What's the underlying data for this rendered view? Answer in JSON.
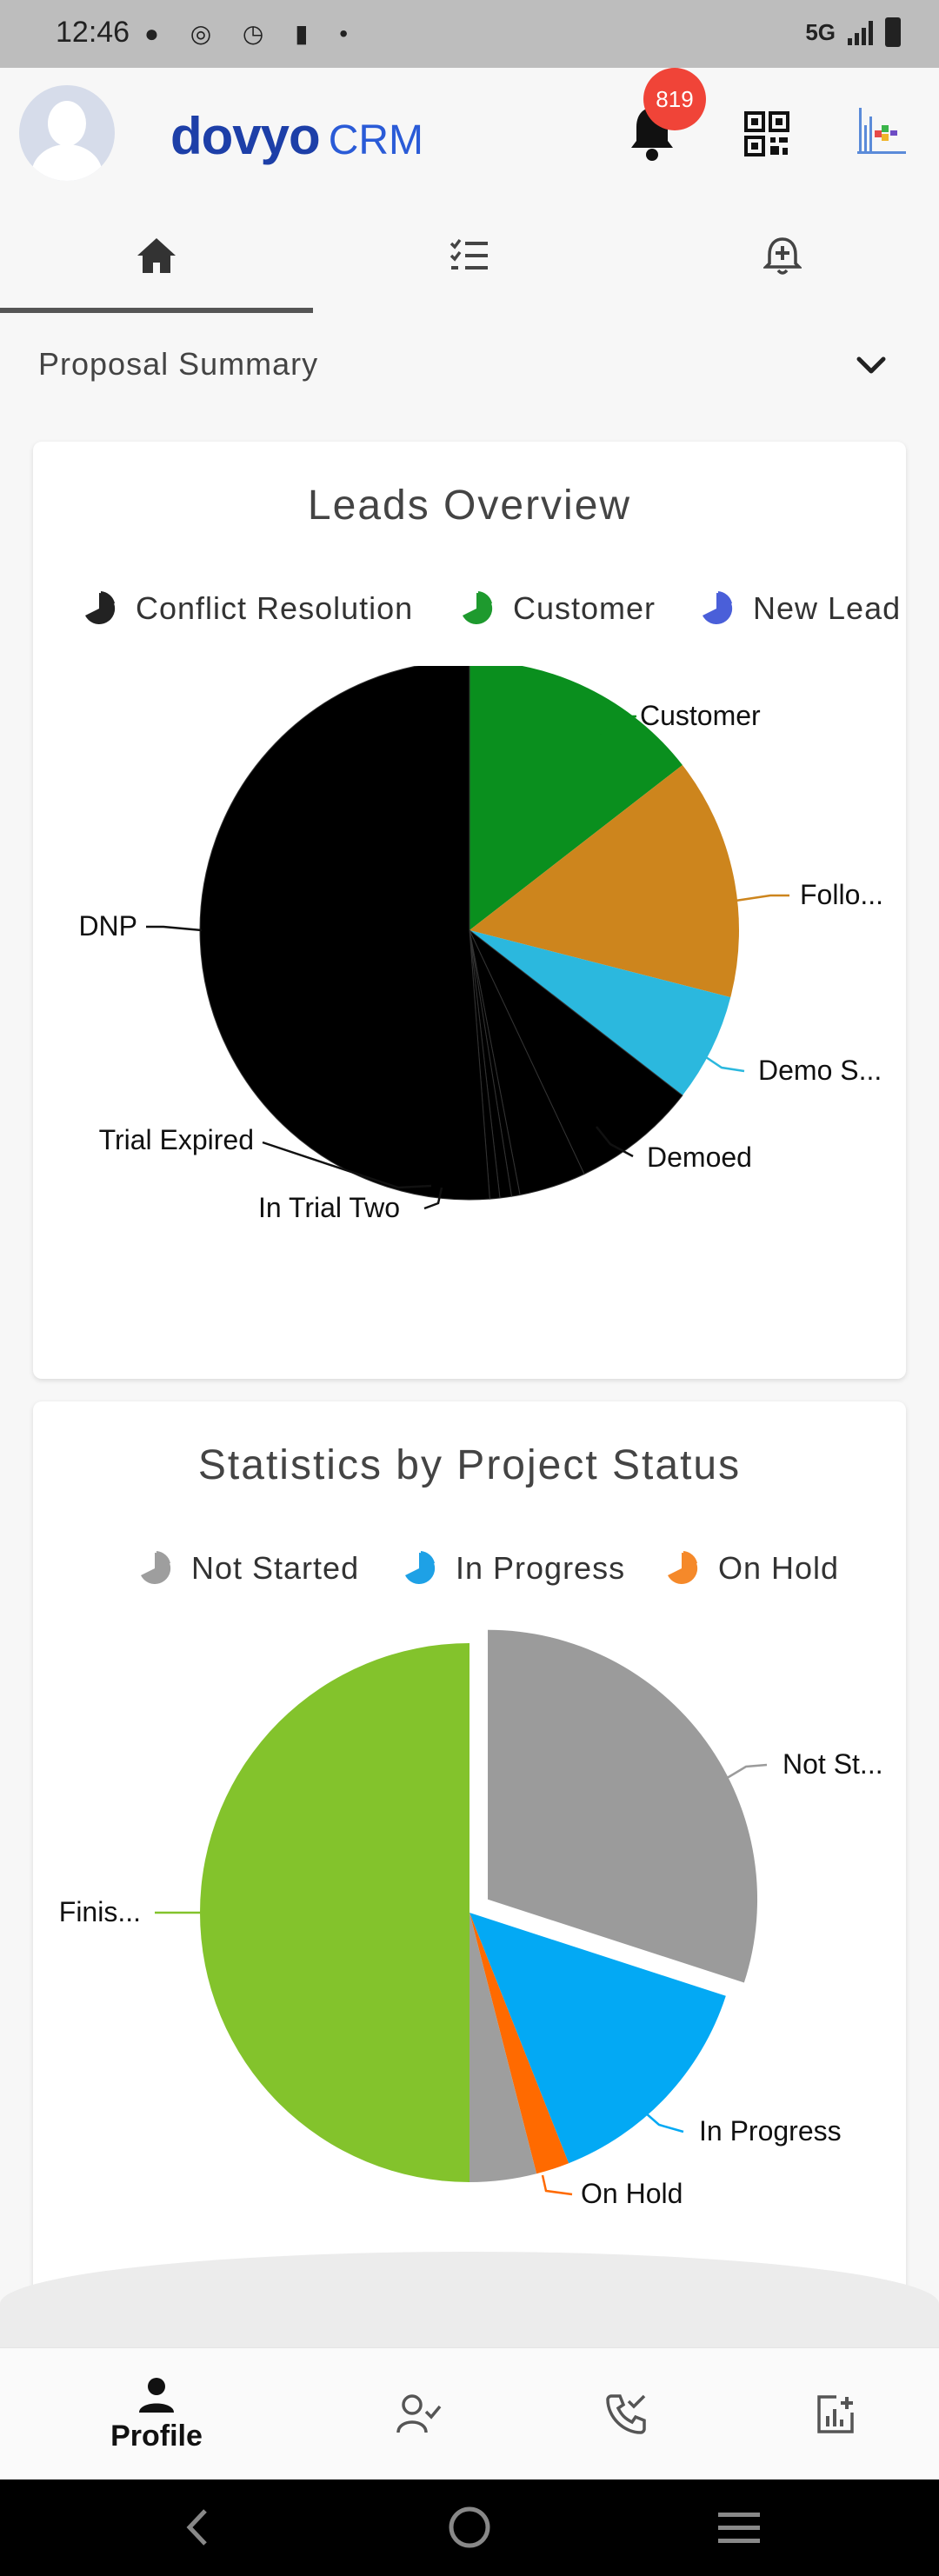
{
  "status_bar": {
    "time": "12:46",
    "network": "5G"
  },
  "header": {
    "logo_main": "dovyo",
    "logo_sub": "CRM",
    "notification_count": "819"
  },
  "tabs": [
    {
      "icon": "home-icon",
      "active": true
    },
    {
      "icon": "checklist-icon",
      "active": false
    },
    {
      "icon": "bell-add-icon",
      "active": false
    }
  ],
  "summary": {
    "label": "Proposal Summary"
  },
  "leads_card": {
    "title": "Leads Overview",
    "legend": [
      {
        "label": "Conflict Resolution",
        "color": "#222222"
      },
      {
        "label": "Customer",
        "color": "#1e9a2e"
      },
      {
        "label": "New Lead",
        "color": "#4a5fd9"
      }
    ]
  },
  "status_card": {
    "title": "Statistics by Project Status",
    "legend": [
      {
        "label": "Not Started",
        "color": "#9e9e9e"
      },
      {
        "label": "In Progress",
        "color": "#1ea1e6"
      },
      {
        "label": "On Hold",
        "color": "#f5892a"
      }
    ]
  },
  "chart_data": [
    {
      "type": "pie",
      "title": "Leads Overview",
      "labels": [
        "Customer",
        "Follo...",
        "Demo S...",
        "Demoed",
        "",
        "",
        "In Trial Two",
        "Trial Expired",
        "DNP"
      ],
      "slice_labels_shown": [
        "Customer",
        "Follo...",
        "Demo S...",
        "Demoed",
        "In Trial Two",
        "Trial Expired",
        "DNP"
      ],
      "values": [
        14.5,
        14.5,
        6.5,
        7.5,
        4.0,
        0.5,
        0.7,
        0.6,
        51.2
      ],
      "colors": [
        "#0a8f1e",
        "#cd851d",
        "#2bb8de",
        "#000000",
        "#000000",
        "#000000",
        "#000000",
        "#000000",
        "#000000"
      ],
      "legend_position": "top"
    },
    {
      "type": "pie",
      "title": "Statistics by Project Status",
      "labels": [
        "Not St...",
        "In Progress",
        "On Hold",
        "",
        "Finis..."
      ],
      "values": [
        30.0,
        14.0,
        2.0,
        4.0,
        50.0
      ],
      "colors": [
        "#9b9b9b",
        "#03a9f4",
        "#ff6a00",
        "#9e9e9e",
        "#83c32c"
      ],
      "exploded": [
        true,
        false,
        false,
        false,
        false
      ],
      "legend_position": "top"
    }
  ],
  "bottom_nav": [
    {
      "label": "Profile",
      "icon": "person-icon",
      "active": true
    },
    {
      "label": "",
      "icon": "person-check-icon",
      "active": false
    },
    {
      "label": "",
      "icon": "phone-check-icon",
      "active": false
    },
    {
      "label": "",
      "icon": "report-add-icon",
      "active": false
    }
  ]
}
